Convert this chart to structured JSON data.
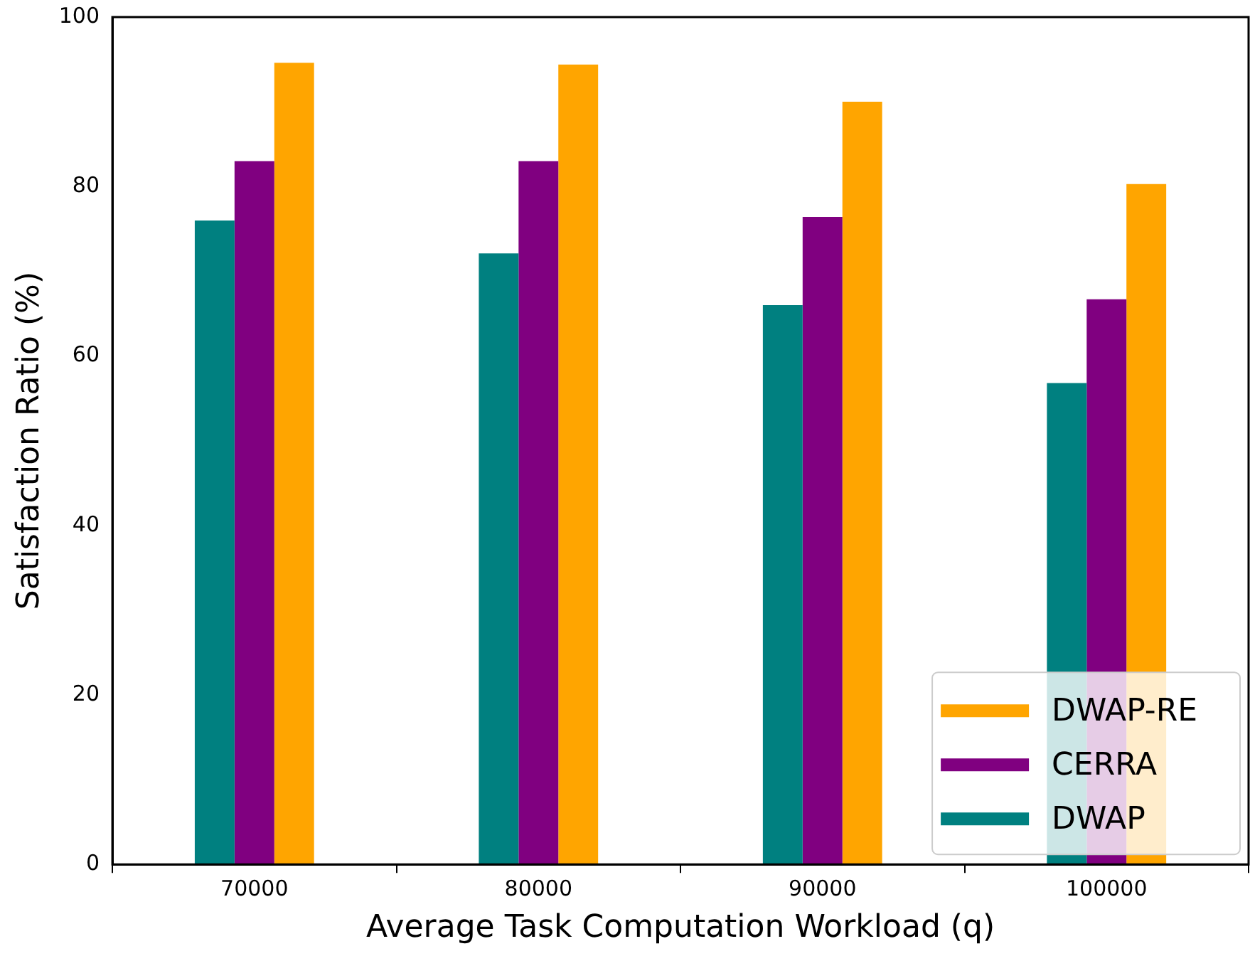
{
  "chart_data": {
    "type": "bar",
    "xlabel": "Average Task Computation Workload (q)",
    "ylabel": "Satisfaction Ratio (%)",
    "categories": [
      "70000",
      "80000",
      "90000",
      "100000"
    ],
    "series": [
      {
        "name": "DWAP",
        "color": "#008080",
        "values": [
          76.0,
          72.1,
          66.0,
          56.8
        ]
      },
      {
        "name": "CERRA",
        "color": "#800080",
        "values": [
          83.0,
          83.0,
          76.4,
          66.7
        ]
      },
      {
        "name": "DWAP-RE",
        "color": "#ffa500",
        "values": [
          94.6,
          94.4,
          90.0,
          80.3
        ]
      }
    ],
    "ylim": [
      0,
      100
    ],
    "yticks": [
      0,
      20,
      40,
      60,
      80,
      100
    ],
    "grid": false,
    "legend": "bottom right"
  }
}
